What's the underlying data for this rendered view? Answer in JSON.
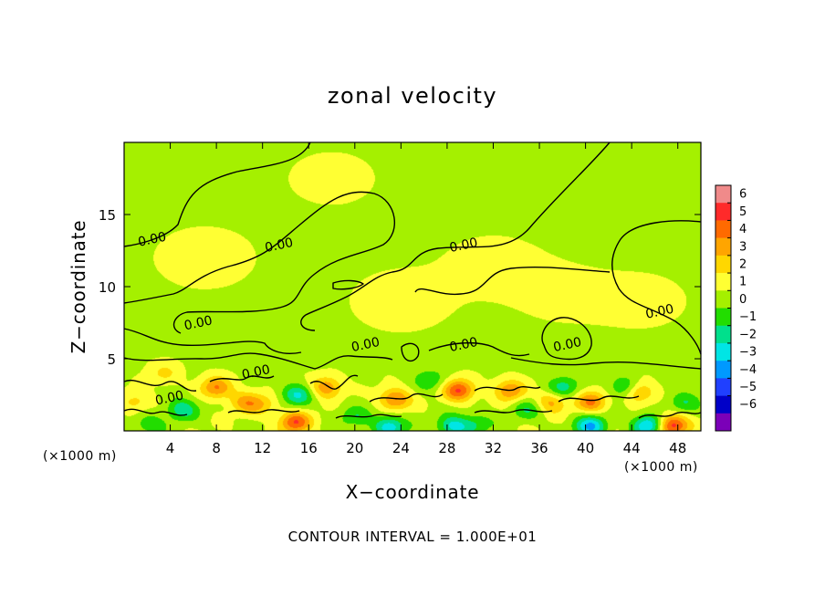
{
  "chart_data": {
    "type": "heatmap",
    "title": "zonal velocity",
    "xlabel": "X−coordinate",
    "ylabel": "Z−coordinate",
    "x_unit_left": "(×1000 m)",
    "x_unit_right": "(×1000 m)",
    "footer": "CONTOUR INTERVAL = 1.000E+01",
    "xlim": [
      0,
      50
    ],
    "ylim": [
      0,
      20
    ],
    "x_ticks": [
      4,
      8,
      12,
      16,
      20,
      24,
      28,
      32,
      36,
      40,
      44,
      48
    ],
    "x_tick_labels": [
      "4",
      "8",
      "12",
      "16",
      "20",
      "24",
      "28",
      "32",
      "36",
      "40",
      "44",
      "48"
    ],
    "y_ticks": [
      5,
      10,
      15
    ],
    "y_tick_labels": [
      "5",
      "10",
      "15"
    ],
    "colorbar": {
      "levels": [
        6,
        5,
        4,
        3,
        2,
        1,
        0,
        -1,
        -2,
        -3,
        -4,
        -5,
        -6
      ],
      "labels": [
        "6",
        "5",
        "4",
        "3",
        "2",
        "1",
        "0",
        "−1",
        "−2",
        "−3",
        "−4",
        "−5",
        "−6"
      ],
      "colors": [
        "#f08a8a",
        "#ff2a2a",
        "#ff6a00",
        "#ffa500",
        "#ffd700",
        "#ffff33",
        "#a5f000",
        "#22dd00",
        "#00e08c",
        "#00e5e5",
        "#0099ff",
        "#2040ff",
        "#0000c8",
        "#7b00b8"
      ]
    },
    "contour_labels": [
      {
        "text": "0.00",
        "x": 2.5,
        "y": 13.0
      },
      {
        "text": "0.00",
        "x": 13.5,
        "y": 12.6
      },
      {
        "text": "0.00",
        "x": 29.5,
        "y": 12.6
      },
      {
        "text": "0.00",
        "x": 46.5,
        "y": 8.0
      },
      {
        "text": "0.00",
        "x": 6.5,
        "y": 7.2
      },
      {
        "text": "0.00",
        "x": 21.0,
        "y": 5.7
      },
      {
        "text": "0.00",
        "x": 29.5,
        "y": 5.7
      },
      {
        "text": "0.00",
        "x": 38.5,
        "y": 5.7
      },
      {
        "text": "0.00",
        "x": 11.5,
        "y": 3.8
      },
      {
        "text": "0.00",
        "x": 4.0,
        "y": 2.0
      }
    ],
    "features": [
      {
        "x": 8.0,
        "y": 3.0,
        "v": 3.2
      },
      {
        "x": 10.5,
        "y": 2.0,
        "v": 2.4
      },
      {
        "x": 14.8,
        "y": 0.6,
        "v": 4.1
      },
      {
        "x": 17.5,
        "y": 3.0,
        "v": 3.0
      },
      {
        "x": 23.5,
        "y": 2.2,
        "v": 3.4
      },
      {
        "x": 29.0,
        "y": 2.8,
        "v": 4.3
      },
      {
        "x": 33.5,
        "y": 2.8,
        "v": 3.1
      },
      {
        "x": 37.0,
        "y": 2.0,
        "v": 2.6
      },
      {
        "x": 40.5,
        "y": 2.0,
        "v": 3.3
      },
      {
        "x": 44.5,
        "y": 2.7,
        "v": 3.0
      },
      {
        "x": 47.5,
        "y": 0.4,
        "v": 5.0
      },
      {
        "x": 3.5,
        "y": 4.0,
        "v": 1.4
      },
      {
        "x": 1.0,
        "y": 2.0,
        "v": 1.6
      },
      {
        "x": 12.0,
        "y": 1.8,
        "v": 1.6
      },
      {
        "x": 5.0,
        "y": 1.5,
        "v": -2.6
      },
      {
        "x": 2.0,
        "y": 0.5,
        "v": -1.6
      },
      {
        "x": 15.0,
        "y": 2.5,
        "v": -3.0
      },
      {
        "x": 20.0,
        "y": 1.0,
        "v": -1.6
      },
      {
        "x": 23.0,
        "y": 0.3,
        "v": -3.6
      },
      {
        "x": 26.5,
        "y": 3.5,
        "v": -1.8
      },
      {
        "x": 28.5,
        "y": 0.3,
        "v": -3.2
      },
      {
        "x": 30.5,
        "y": 0.5,
        "v": -1.8
      },
      {
        "x": 35.0,
        "y": 1.5,
        "v": -1.8
      },
      {
        "x": 38.0,
        "y": 3.0,
        "v": -2.4
      },
      {
        "x": 40.5,
        "y": 0.3,
        "v": -4.0
      },
      {
        "x": 43.5,
        "y": 3.0,
        "v": -2.6
      },
      {
        "x": 45.5,
        "y": 0.4,
        "v": -4.2
      },
      {
        "x": 48.5,
        "y": 2.0,
        "v": -1.8
      },
      {
        "x": 7.0,
        "y": 12.0,
        "v": 0.4
      },
      {
        "x": 24.0,
        "y": 9.0,
        "v": 0.4
      },
      {
        "x": 32.0,
        "y": 11.5,
        "v": 0.35
      },
      {
        "x": 38.0,
        "y": 9.5,
        "v": 0.3
      },
      {
        "x": 45.0,
        "y": 9.0,
        "v": 0.3
      },
      {
        "x": 18.0,
        "y": 17.5,
        "v": 0.3
      }
    ]
  }
}
